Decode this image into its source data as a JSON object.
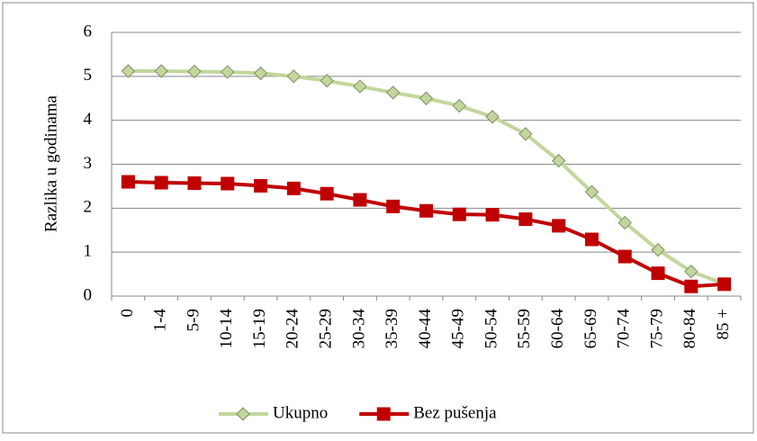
{
  "chart_data": {
    "type": "line",
    "y_axis_label": "Razlika u  godinama",
    "categories": [
      "0",
      "1-4",
      "5-9",
      "10-14",
      "15-19",
      "20-24",
      "25-29",
      "30-34",
      "35-39",
      "40-44",
      "45-49",
      "50-54",
      "55-59",
      "60-64",
      "65-69",
      "70-74",
      "75-79",
      "80-84",
      "85 +"
    ],
    "series": [
      {
        "name": "Ukupno",
        "color": "#c3d69b",
        "marker": "diamond",
        "values": [
          5.12,
          5.12,
          5.11,
          5.1,
          5.07,
          5.0,
          4.9,
          4.77,
          4.63,
          4.5,
          4.33,
          4.08,
          3.69,
          3.08,
          2.37,
          1.67,
          1.05,
          0.56,
          0.28
        ]
      },
      {
        "name": "Bez pušenja",
        "color": "#c00000",
        "marker": "square",
        "values": [
          2.6,
          2.58,
          2.57,
          2.56,
          2.51,
          2.45,
          2.33,
          2.19,
          2.04,
          1.94,
          1.86,
          1.85,
          1.75,
          1.6,
          1.29,
          0.9,
          0.52,
          0.22,
          0.27
        ]
      }
    ],
    "ylim": [
      0,
      6
    ],
    "yticks": [
      0,
      1,
      2,
      3,
      4,
      5,
      6
    ],
    "grid": true,
    "legend": "bottom"
  }
}
